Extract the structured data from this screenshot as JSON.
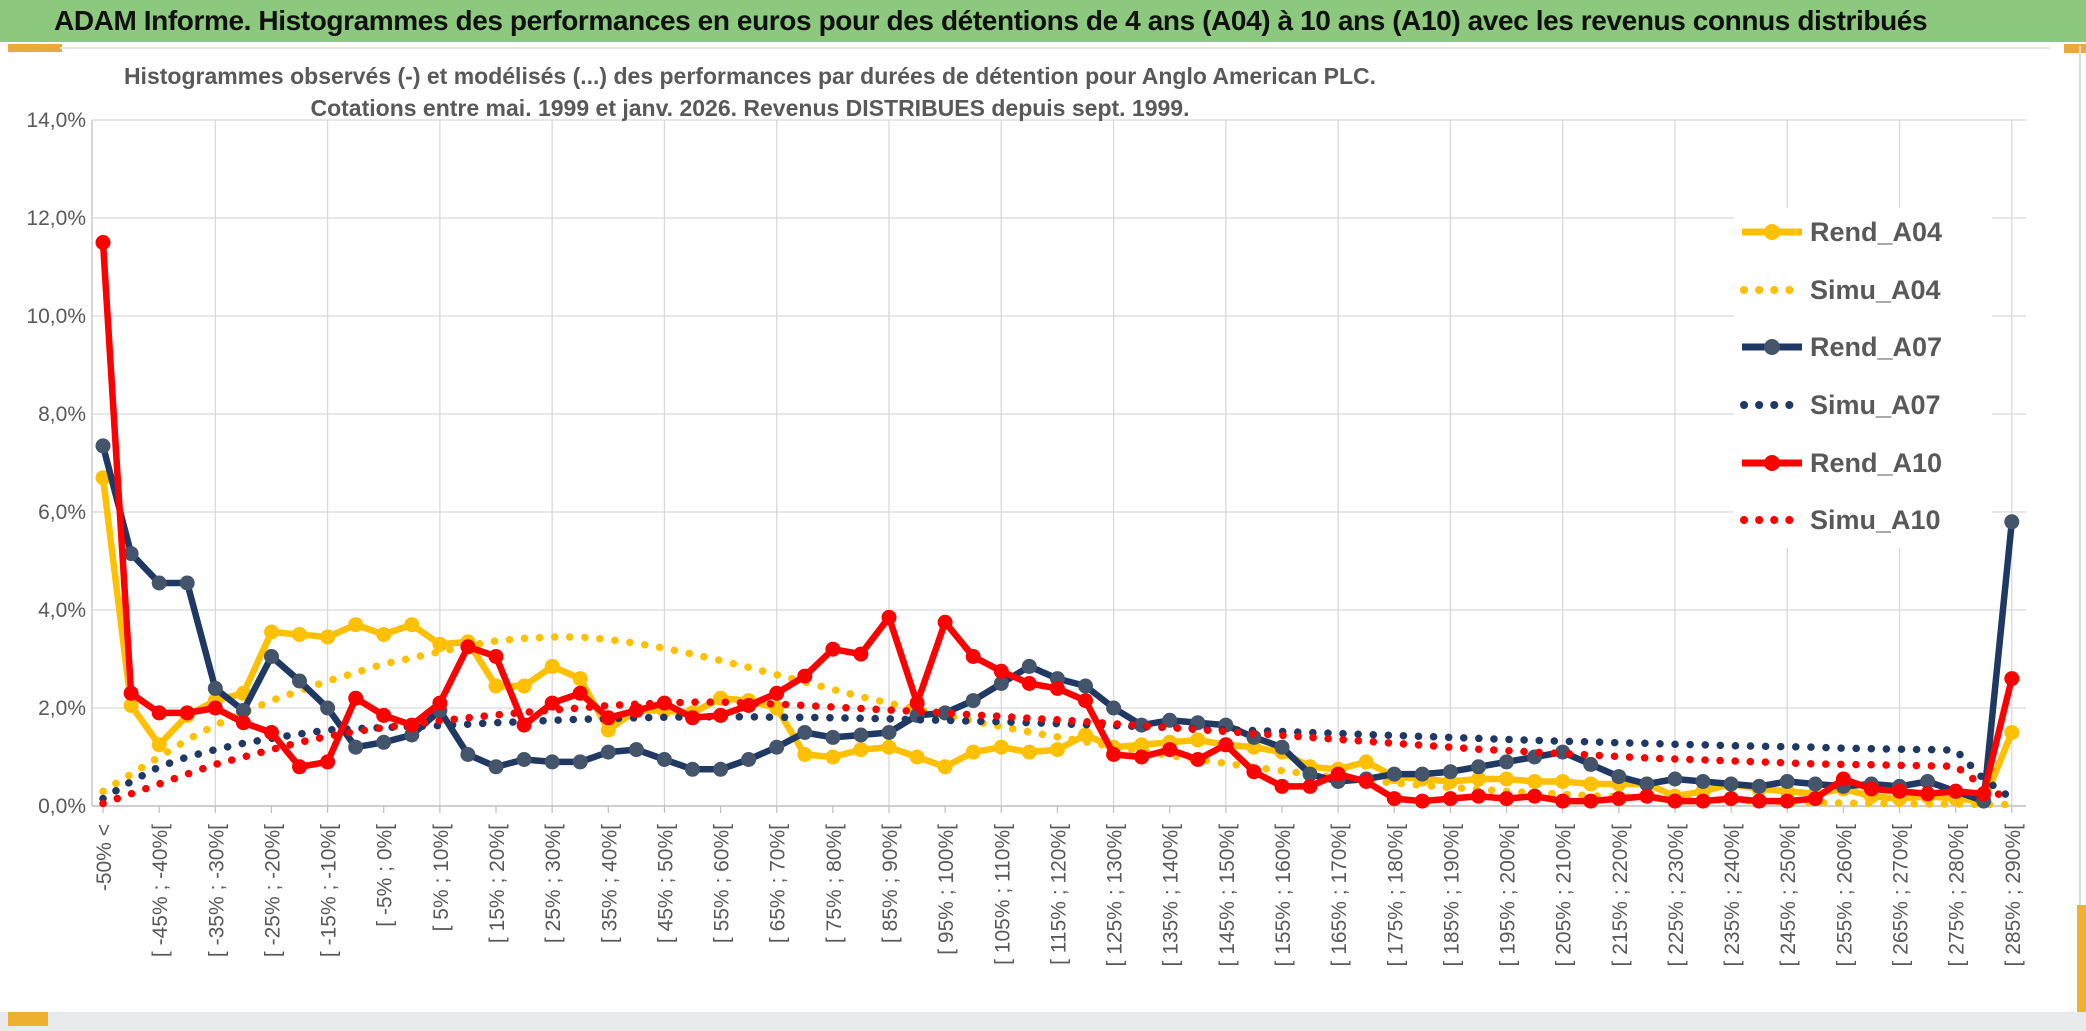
{
  "window": {
    "title": "ADAM Informe. Histogrammes des performances en euros pour des détentions de 4 ans (A04) à 10 ans (A10) avec les revenus connus distribués"
  },
  "chart": {
    "title_line1": "Histogrammes observés (-) et modélisés (...) des performances par durées de détention pour Anglo American PLC.",
    "title_line2": "Cotations entre mai. 1999 et janv. 2026. Revenus DISTRIBUES depuis sept. 1999."
  },
  "colors": {
    "titlebar_green": "#8CC97E",
    "text_gray": "#595959",
    "gridline": "#D9D9D9",
    "axis_line": "#BFBFBF",
    "gold": "#FFC000",
    "navy": "#1F3864",
    "navy_marker": "#44546A",
    "red": "#FF0000",
    "legend_bg": "#FFFFFF"
  },
  "chart_data": {
    "type": "line",
    "title": "Histogrammes observés (-) et modélisés (...) des performances par durées de détention pour Anglo American PLC. Cotations entre mai. 1999 et janv. 2026. Revenus DISTRIBUES depuis sept. 1999.",
    "n_categories": 69,
    "every_other_category_labeled": true,
    "x_tick_labels": [
      "-50% <",
      "[ -45% ; -40%[",
      "[ -35% ; -30%[",
      "[ -25% ; -20%[",
      "[ -15% ; -10%[",
      "[ -5% ; 0%[",
      "[ 5% ; 10%[",
      "[ 15% ; 20%[",
      "[ 25% ; 30%[",
      "[ 35% ; 40%[",
      "[ 45% ; 50%[",
      "[ 55% ; 60%[",
      "[ 65% ; 70%[",
      "[ 75% ; 80%[",
      "[ 85% ; 90%[",
      "[ 95% ; 100%[",
      "[ 105% ; 110%[",
      "[ 115% ; 120%[",
      "[ 125% ; 130%[",
      "[ 135% ; 140%[",
      "[ 145% ; 150%[",
      "[ 155% ; 160%[",
      "[ 165% ; 170%[",
      "[ 175% ; 180%[",
      "[ 185% ; 190%[",
      "[ 195% ; 200%[",
      "[ 205% ; 210%[",
      "[ 215% ; 220%[",
      "[ 225% ; 230%[",
      "[ 235% ; 240%[",
      "[ 245% ; 250%[",
      "[ 255% ; 260%[",
      "[ 265% ; 270%[",
      "[ 275% ; 280%[",
      "[ 285% ; 290%["
    ],
    "y_ticks": [
      "0,0%",
      "2,0%",
      "4,0%",
      "6,0%",
      "8,0%",
      "10,0%",
      "12,0%",
      "14,0%"
    ],
    "ylim_percent": [
      0,
      14
    ],
    "grid": true,
    "legend_position": "right",
    "series": [
      {
        "name": "Rend_A04",
        "style": "solid",
        "color": "#FFC000",
        "marker_color": "#FFC000",
        "values": [
          6.7,
          2.05,
          1.25,
          1.85,
          2.15,
          2.3,
          3.55,
          3.5,
          3.45,
          3.7,
          3.5,
          3.7,
          3.3,
          3.35,
          2.45,
          2.45,
          2.85,
          2.6,
          1.55,
          1.95,
          1.95,
          1.9,
          2.2,
          2.15,
          2.0,
          1.05,
          1.0,
          1.15,
          1.2,
          1.0,
          0.8,
          1.1,
          1.2,
          1.1,
          1.15,
          1.45,
          1.2,
          1.25,
          1.3,
          1.35,
          1.25,
          1.2,
          1.1,
          0.8,
          0.75,
          0.9,
          0.6,
          0.55,
          0.5,
          0.55,
          0.55,
          0.5,
          0.5,
          0.45,
          0.45,
          0.45,
          0.2,
          0.3,
          0.45,
          0.35,
          0.3,
          0.25,
          0.35,
          0.2,
          0.15,
          0.2,
          0.15,
          0.1,
          1.5
        ]
      },
      {
        "name": "Simu_A04",
        "style": "dotted",
        "color": "#FFC000",
        "values": [
          0.3,
          0.65,
          1.0,
          1.35,
          1.65,
          1.9,
          2.15,
          2.35,
          2.55,
          2.72,
          2.9,
          3.02,
          3.15,
          3.27,
          3.37,
          3.42,
          3.45,
          3.45,
          3.4,
          3.32,
          3.22,
          3.1,
          2.97,
          2.83,
          2.68,
          2.53,
          2.38,
          2.23,
          2.1,
          1.97,
          1.85,
          1.73,
          1.62,
          1.51,
          1.41,
          1.31,
          1.21,
          1.12,
          1.03,
          0.95,
          0.87,
          0.79,
          0.72,
          0.65,
          0.58,
          0.52,
          0.47,
          0.42,
          0.38,
          0.34,
          0.3,
          0.27,
          0.24,
          0.21,
          0.19,
          0.17,
          0.15,
          0.13,
          0.11,
          0.1,
          0.08,
          0.07,
          0.06,
          0.05,
          0.05,
          0.04,
          0.04,
          0.03,
          0.03
        ]
      },
      {
        "name": "Rend_A07",
        "style": "solid",
        "color": "#1F3864",
        "marker_color": "#44546A",
        "values": [
          7.35,
          5.15,
          4.55,
          4.55,
          2.4,
          1.95,
          3.05,
          2.55,
          2.0,
          1.2,
          1.3,
          1.45,
          1.95,
          1.05,
          0.8,
          0.95,
          0.9,
          0.9,
          1.1,
          1.15,
          0.95,
          0.75,
          0.75,
          0.95,
          1.2,
          1.5,
          1.4,
          1.45,
          1.5,
          1.85,
          1.9,
          2.15,
          2.5,
          2.85,
          2.6,
          2.45,
          2.0,
          1.65,
          1.75,
          1.7,
          1.65,
          1.4,
          1.2,
          0.65,
          0.5,
          0.55,
          0.65,
          0.65,
          0.7,
          0.8,
          0.9,
          1.0,
          1.1,
          0.85,
          0.6,
          0.45,
          0.55,
          0.5,
          0.45,
          0.4,
          0.5,
          0.45,
          0.4,
          0.45,
          0.4,
          0.5,
          0.3,
          0.1,
          5.8
        ]
      },
      {
        "name": "Simu_A07",
        "style": "dotted",
        "color": "#1F3864",
        "values": [
          0.15,
          0.5,
          0.8,
          1.0,
          1.15,
          1.28,
          1.38,
          1.47,
          1.55,
          1.58,
          1.6,
          1.62,
          1.64,
          1.67,
          1.7,
          1.72,
          1.75,
          1.77,
          1.78,
          1.8,
          1.81,
          1.82,
          1.82,
          1.82,
          1.81,
          1.81,
          1.8,
          1.79,
          1.78,
          1.76,
          1.75,
          1.73,
          1.72,
          1.7,
          1.68,
          1.66,
          1.64,
          1.62,
          1.6,
          1.58,
          1.56,
          1.54,
          1.52,
          1.5,
          1.48,
          1.46,
          1.44,
          1.42,
          1.4,
          1.38,
          1.36,
          1.34,
          1.32,
          1.31,
          1.29,
          1.28,
          1.26,
          1.25,
          1.23,
          1.22,
          1.21,
          1.2,
          1.18,
          1.17,
          1.16,
          1.15,
          1.14,
          0.55,
          0.15
        ]
      },
      {
        "name": "Rend_A10",
        "style": "solid",
        "color": "#FF0000",
        "marker_color": "#FF0000",
        "values": [
          11.5,
          2.3,
          1.9,
          1.9,
          2.0,
          1.7,
          1.5,
          0.8,
          0.9,
          2.2,
          1.85,
          1.65,
          2.1,
          3.25,
          3.05,
          1.65,
          2.1,
          2.3,
          1.8,
          1.95,
          2.1,
          1.8,
          1.85,
          2.05,
          2.3,
          2.65,
          3.2,
          3.1,
          3.85,
          2.1,
          3.75,
          3.05,
          2.75,
          2.5,
          2.4,
          2.15,
          1.05,
          1.0,
          1.15,
          0.95,
          1.25,
          0.7,
          0.4,
          0.4,
          0.65,
          0.5,
          0.15,
          0.1,
          0.15,
          0.2,
          0.15,
          0.2,
          0.1,
          0.1,
          0.15,
          0.2,
          0.1,
          0.1,
          0.15,
          0.1,
          0.1,
          0.15,
          0.55,
          0.35,
          0.3,
          0.25,
          0.3,
          0.25,
          2.6
        ]
      },
      {
        "name": "Simu_A10",
        "style": "dotted",
        "color": "#FF0000",
        "values": [
          0.05,
          0.25,
          0.45,
          0.65,
          0.85,
          1.0,
          1.15,
          1.3,
          1.42,
          1.52,
          1.6,
          1.67,
          1.74,
          1.8,
          1.86,
          1.91,
          1.96,
          2.0,
          2.05,
          2.08,
          2.1,
          2.12,
          2.12,
          2.1,
          2.08,
          2.05,
          2.02,
          1.99,
          1.96,
          1.93,
          1.9,
          1.86,
          1.83,
          1.79,
          1.76,
          1.72,
          1.68,
          1.64,
          1.6,
          1.56,
          1.52,
          1.48,
          1.44,
          1.4,
          1.36,
          1.32,
          1.28,
          1.24,
          1.2,
          1.16,
          1.13,
          1.1,
          1.07,
          1.04,
          1.01,
          0.98,
          0.96,
          0.94,
          0.92,
          0.9,
          0.88,
          0.86,
          0.85,
          0.84,
          0.83,
          0.82,
          0.81,
          0.4,
          0.1
        ]
      }
    ]
  },
  "legend": {
    "entries": [
      "Rend_A04",
      "Simu_A04",
      "Rend_A07",
      "Simu_A07",
      "Rend_A10",
      "Simu_A10"
    ]
  }
}
